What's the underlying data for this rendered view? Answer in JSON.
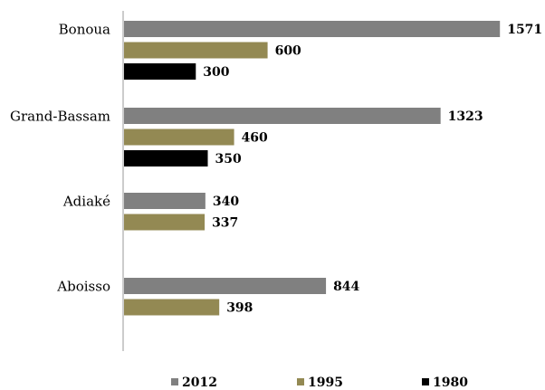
{
  "chart_data": {
    "type": "bar",
    "orientation": "horizontal",
    "categories": [
      "Bonoua",
      "Grand-Bassam",
      "Adiaké",
      "Aboisso"
    ],
    "series": [
      {
        "name": "2012",
        "color": "#808080",
        "values": [
          1571,
          1323,
          340,
          844
        ]
      },
      {
        "name": "1995",
        "color": "#938953",
        "values": [
          600,
          460,
          337,
          398
        ]
      },
      {
        "name": "1980",
        "color": "#000000",
        "values": [
          300,
          350,
          null,
          null
        ]
      }
    ],
    "xlim": [
      0,
      1600
    ],
    "grid": false,
    "legend_position": "bottom",
    "title": "",
    "xlabel": "",
    "ylabel": ""
  }
}
